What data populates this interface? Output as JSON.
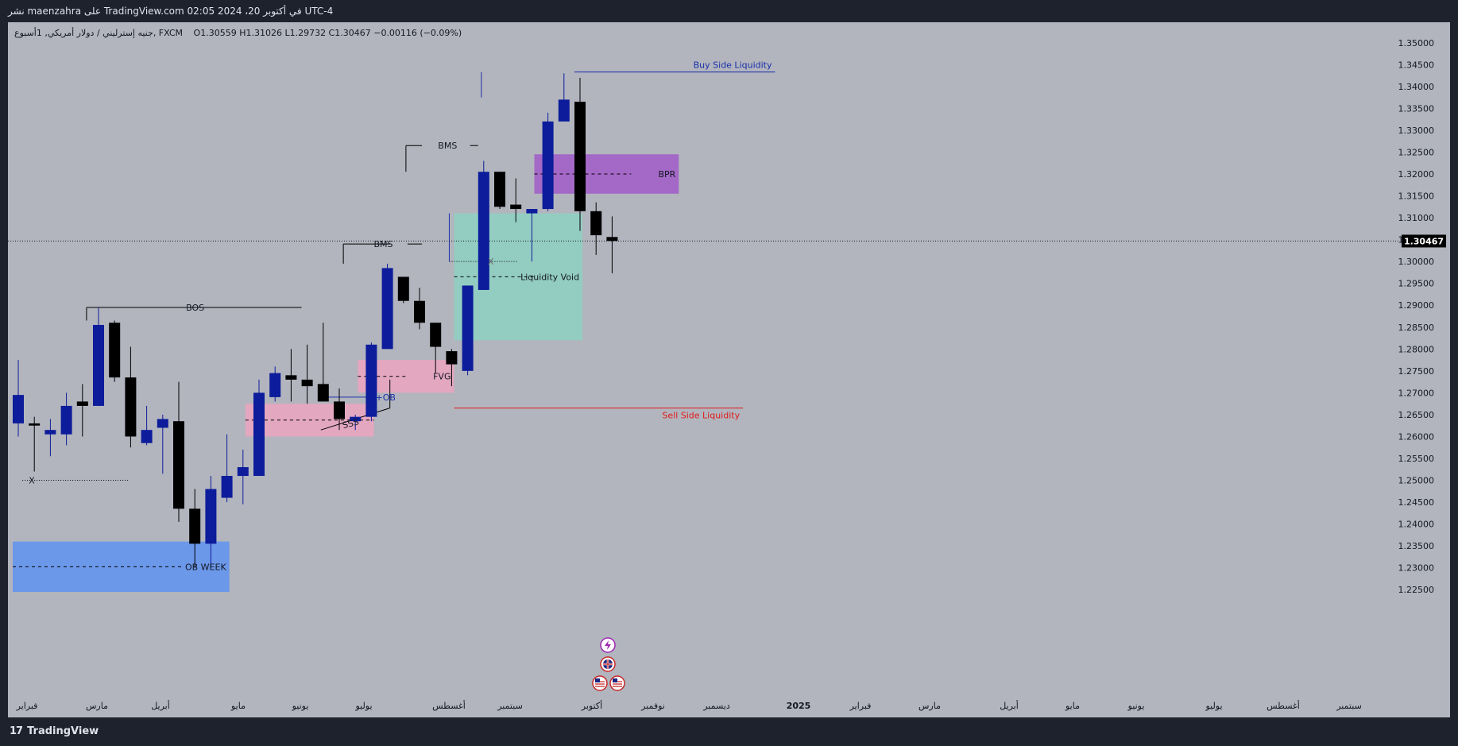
{
  "header": {
    "publish_line": "نشر maenzahra على TradingView.com في أكتوبر 20، 2024 02:05 UTC-4",
    "symbol_line": "جنيه إسترليني / دولار أمريكي, 1أسبوع, FXCM",
    "ohlc_line": "O1.30559  H1.31026  L1.29732  C1.30467  −0.00116 (−0.09%)"
  },
  "footer": {
    "brand": "TradingView"
  },
  "colors": {
    "bull": "#0c1c9a",
    "bear": "#000000",
    "background": "#b2b5be",
    "buy_side": "#1a2ea8",
    "sell_side": "#e01b1b",
    "price_tag": "#000000"
  },
  "chart_data": {
    "type": "candlestick",
    "symbol": "GBPUSD",
    "timeframe": "1W",
    "ylim": [
      1.2225,
      1.3525
    ],
    "yticks": [
      "1.35000",
      "1.34500",
      "1.34000",
      "1.33500",
      "1.33000",
      "1.32500",
      "1.32000",
      "1.31500",
      "1.31000",
      "1.30500",
      "1.30000",
      "1.29500",
      "1.29000",
      "1.28500",
      "1.28000",
      "1.27500",
      "1.27000",
      "1.26500",
      "1.26000",
      "1.25500",
      "1.25000",
      "1.24500",
      "1.24000",
      "1.23500",
      "1.23000",
      "1.22500"
    ],
    "current_price": "1.30467",
    "candles": [
      {
        "o": 1.263,
        "h": 1.2775,
        "l": 1.26,
        "c": 1.2695
      },
      {
        "o": 1.263,
        "h": 1.2645,
        "l": 1.252,
        "c": 1.2625
      },
      {
        "o": 1.2605,
        "h": 1.264,
        "l": 1.2555,
        "c": 1.2615
      },
      {
        "o": 1.2605,
        "h": 1.27,
        "l": 1.258,
        "c": 1.267
      },
      {
        "o": 1.268,
        "h": 1.272,
        "l": 1.26,
        "c": 1.267
      },
      {
        "o": 1.267,
        "h": 1.2895,
        "l": 1.267,
        "c": 1.2855
      },
      {
        "o": 1.286,
        "h": 1.2865,
        "l": 1.2725,
        "c": 1.2735
      },
      {
        "o": 1.2735,
        "h": 1.2805,
        "l": 1.2575,
        "c": 1.26
      },
      {
        "o": 1.2585,
        "h": 1.267,
        "l": 1.258,
        "c": 1.2615
      },
      {
        "o": 1.262,
        "h": 1.265,
        "l": 1.2515,
        "c": 1.264
      },
      {
        "o": 1.2635,
        "h": 1.2725,
        "l": 1.2405,
        "c": 1.2435
      },
      {
        "o": 1.2435,
        "h": 1.248,
        "l": 1.23,
        "c": 1.2355
      },
      {
        "o": 1.2355,
        "h": 1.251,
        "l": 1.23,
        "c": 1.248
      },
      {
        "o": 1.246,
        "h": 1.2605,
        "l": 1.245,
        "c": 1.251
      },
      {
        "o": 1.251,
        "h": 1.257,
        "l": 1.2445,
        "c": 1.253
      },
      {
        "o": 1.251,
        "h": 1.273,
        "l": 1.251,
        "c": 1.27
      },
      {
        "o": 1.269,
        "h": 1.276,
        "l": 1.268,
        "c": 1.2745
      },
      {
        "o": 1.274,
        "h": 1.28,
        "l": 1.268,
        "c": 1.273
      },
      {
        "o": 1.273,
        "h": 1.281,
        "l": 1.2675,
        "c": 1.2715
      },
      {
        "o": 1.272,
        "h": 1.286,
        "l": 1.269,
        "c": 1.268
      },
      {
        "o": 1.268,
        "h": 1.271,
        "l": 1.2615,
        "c": 1.264
      },
      {
        "o": 1.2635,
        "h": 1.265,
        "l": 1.2615,
        "c": 1.2645
      },
      {
        "o": 1.2645,
        "h": 1.2815,
        "l": 1.2635,
        "c": 1.281
      },
      {
        "o": 1.28,
        "h": 1.2995,
        "l": 1.28,
        "c": 1.2985
      },
      {
        "o": 1.2965,
        "h": 1.2965,
        "l": 1.2905,
        "c": 1.291
      },
      {
        "o": 1.291,
        "h": 1.294,
        "l": 1.2845,
        "c": 1.286
      },
      {
        "o": 1.286,
        "h": 1.286,
        "l": 1.2745,
        "c": 1.2805
      },
      {
        "o": 1.2795,
        "h": 1.28,
        "l": 1.2715,
        "c": 1.2765
      },
      {
        "o": 1.275,
        "h": 1.2945,
        "l": 1.274,
        "c": 1.2945
      },
      {
        "o": 1.2935,
        "h": 1.323,
        "l": 1.2935,
        "c": 1.3205
      },
      {
        "o": 1.3205,
        "h": 1.3205,
        "l": 1.312,
        "c": 1.3125
      },
      {
        "o": 1.313,
        "h": 1.319,
        "l": 1.309,
        "c": 1.312
      },
      {
        "o": 1.311,
        "h": 1.312,
        "l": 1.3,
        "c": 1.312
      },
      {
        "o": 1.312,
        "h": 1.334,
        "l": 1.3115,
        "c": 1.332
      },
      {
        "o": 1.332,
        "h": 1.343,
        "l": 1.332,
        "c": 1.337
      },
      {
        "o": 1.3365,
        "h": 1.342,
        "l": 1.307,
        "c": 1.3115
      },
      {
        "o": 1.3115,
        "h": 1.3135,
        "l": 1.3015,
        "c": 1.306
      },
      {
        "o": 1.3056,
        "h": 1.3103,
        "l": 1.2973,
        "c": 1.3047
      }
    ],
    "time_labels": [
      "فبراير",
      "مارس",
      "أبريل",
      "مايو",
      "يونيو",
      "يوليو",
      "أغسطس",
      "سبتمبر",
      "أكتوبر",
      "نوفمبر",
      "ديسمبر",
      "2025",
      "فبراير",
      "مارس",
      "أبريل",
      "مايو",
      "يونيو",
      "يوليو",
      "أغسطس",
      "سبتمبر"
    ],
    "zones": [
      {
        "label": "OB WEEK",
        "from": 0,
        "to": 13.5,
        "top": 1.236,
        "bottom": 1.2245,
        "color": "#6495ed"
      },
      {
        "label": "",
        "from": 14.5,
        "to": 22.5,
        "top": 1.2675,
        "bottom": 1.26,
        "color": "#e8a5c0"
      },
      {
        "label": "FVG",
        "from": 21.5,
        "to": 27.5,
        "top": 1.2775,
        "bottom": 1.27,
        "color": "#e8a5c0"
      },
      {
        "label": "Liquidity Void",
        "from": 27.5,
        "to": 35.5,
        "top": 1.311,
        "bottom": 1.282,
        "color": "#8fcfc2"
      },
      {
        "label": "BPR",
        "from": 32.5,
        "to": 41.5,
        "top": 1.3245,
        "bottom": 1.3155,
        "color": "#a25fc8"
      }
    ],
    "annotations": [
      {
        "text": "BOS",
        "x": 5,
        "price": 1.2895
      },
      {
        "text": "BMS",
        "x": 24.5,
        "price": 1.304
      },
      {
        "text": "BMS",
        "x": 31,
        "price": 1.3265
      },
      {
        "text": "+OB",
        "x": 27,
        "price": 1.269
      },
      {
        "text": "SSS",
        "x": 25,
        "price": 1.264
      },
      {
        "text": "X",
        "x": 1,
        "price": 1.25
      },
      {
        "text": "X",
        "x": 35,
        "price": 1.3
      }
    ],
    "liquidity": [
      {
        "text": "Buy Side Liquidity",
        "price": 1.3433,
        "from": 35,
        "to": 47.5
      },
      {
        "text": "Sell Side Liquidity",
        "price": 1.2665,
        "from": 27.5,
        "to": 45.5
      }
    ],
    "grid": false
  }
}
